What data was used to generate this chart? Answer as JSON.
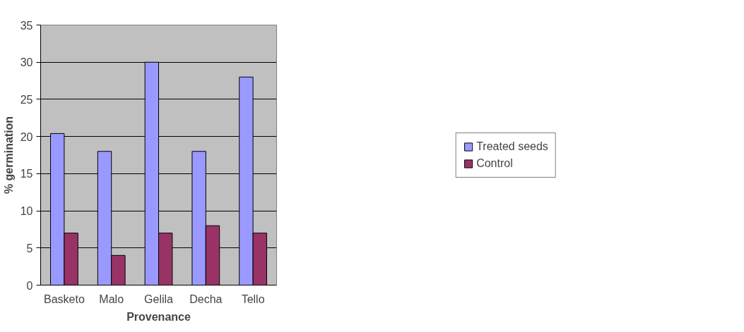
{
  "chart_data": {
    "type": "bar",
    "xlabel": "Provenance",
    "ylabel": "% germination",
    "categories": [
      "Basketo",
      "Malo",
      "Gelila",
      "Decha",
      "Tello"
    ],
    "series": [
      {
        "name": "Treated seeds",
        "color": "#9999ff",
        "values": [
          20.4,
          18,
          30,
          18,
          28
        ]
      },
      {
        "name": "Control",
        "color": "#993366",
        "values": [
          7,
          4,
          7,
          8,
          7
        ]
      }
    ],
    "ylim": [
      0,
      35
    ],
    "yticks": [
      0,
      5,
      10,
      15,
      20,
      25,
      30,
      35
    ],
    "grid": "y",
    "legend": "right"
  }
}
